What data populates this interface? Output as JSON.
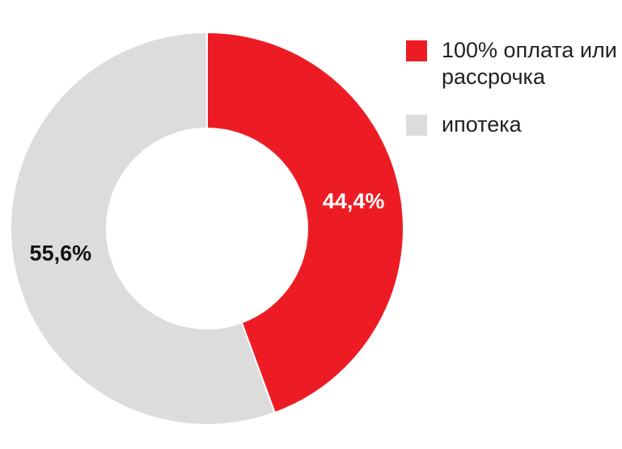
{
  "chart_data": {
    "type": "donut",
    "categories": [
      "100% оплата или рассрочка",
      "ипотека"
    ],
    "values": [
      44.4,
      55.6
    ],
    "value_labels": [
      "44,4%",
      "55,6%"
    ],
    "colors": [
      "#ed1c24",
      "#dcdcdd"
    ],
    "label_colors": [
      "#ffffff",
      "#111111"
    ]
  }
}
